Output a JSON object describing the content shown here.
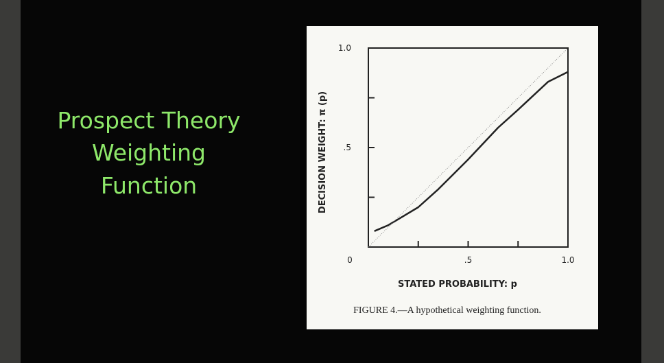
{
  "slide": {
    "title_lines": [
      "Prospect Theory",
      "Weighting",
      "Function"
    ]
  },
  "chart_data": {
    "type": "line",
    "xlabel": "STATED PROBABILITY: p",
    "ylabel": "DECISION WEIGHT: π (p)",
    "caption": "FIGURE 4.—A hypothetical weighting function.",
    "xlim": [
      0,
      1
    ],
    "ylim": [
      0,
      1
    ],
    "xticks": [
      0,
      {
        "value": 0.5,
        "label": ".5"
      },
      {
        "value": 1,
        "label": "1.0"
      }
    ],
    "xminorticks": [
      0.25,
      0.75
    ],
    "yticks": [
      {
        "value": 0.5,
        "label": ".5"
      },
      {
        "value": 1,
        "label": "1.0"
      }
    ],
    "yminorticks": [
      0.25,
      0.75
    ],
    "series": [
      {
        "color": "#222222",
        "style": "solid",
        "x": [
          0.03,
          0.1,
          0.15,
          0.25,
          0.35,
          0.5,
          0.65,
          0.75,
          0.9,
          1.0
        ],
        "values": [
          0.08,
          0.11,
          0.14,
          0.2,
          0.29,
          0.44,
          0.6,
          0.69,
          0.83,
          0.88
        ]
      },
      {
        "color": "#888888",
        "style": "dotted",
        "x": [
          0,
          1
        ],
        "values": [
          0,
          1
        ]
      }
    ]
  }
}
